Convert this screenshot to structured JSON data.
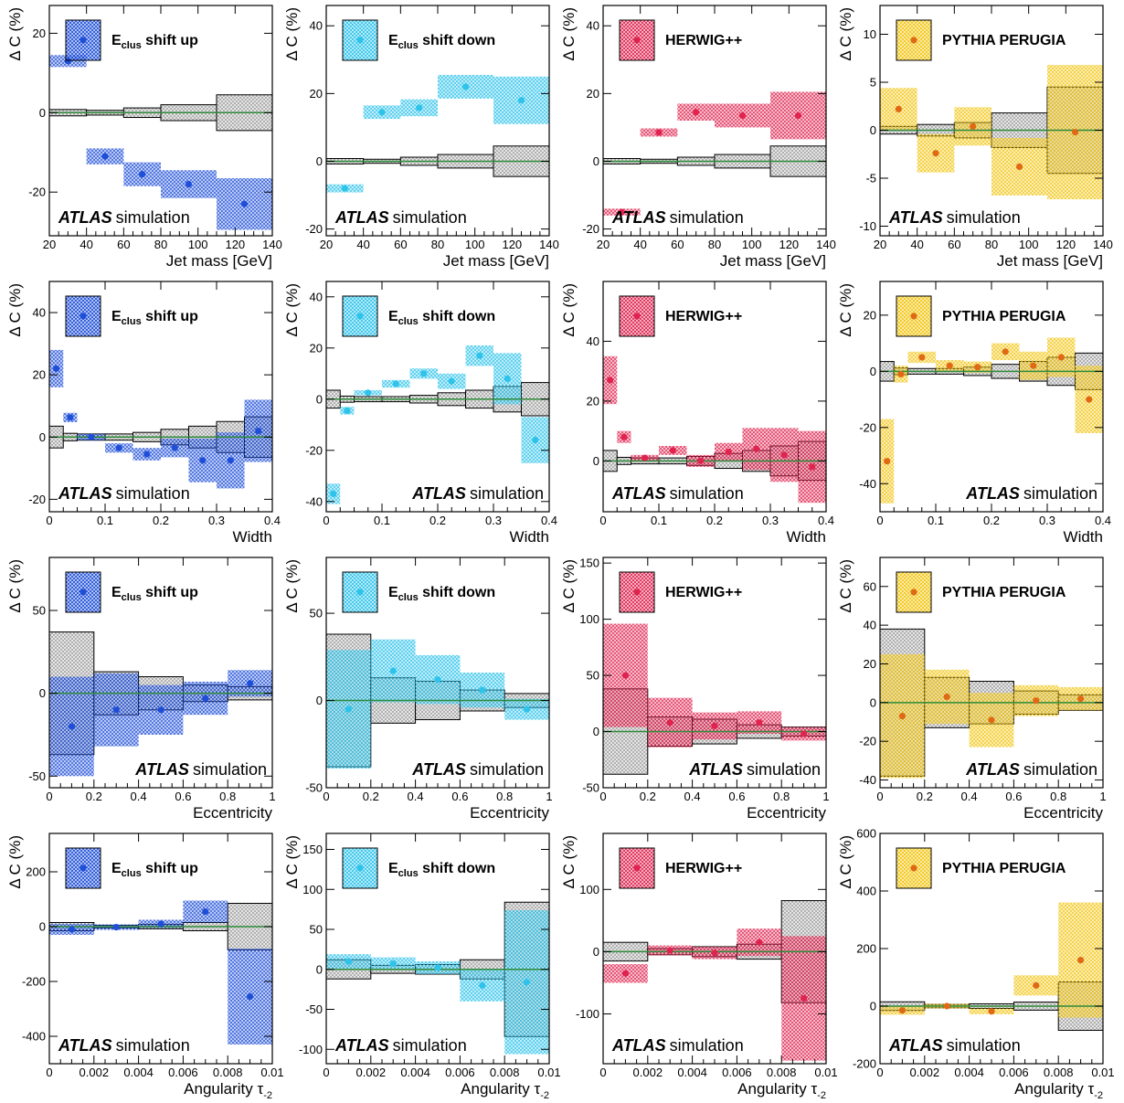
{
  "colors": {
    "shift_up": "#1f4fd8",
    "shift_down": "#2ec3ea",
    "herwig": "#e0234f",
    "perugia": "#f1c40f",
    "perugia_marker": "#e06a14",
    "nominal": "#2e8b3a",
    "syst_gray": "#b0b0b0"
  },
  "chart_data": [
    {
      "type": "scatter",
      "panel": "mass-up",
      "variant": "up",
      "legend": "E",
      "legend_sub": "clus",
      "legend_rest": " shift up",
      "xlabel": "Jet mass [GeV]",
      "ylabel": "Δ C (%)",
      "xlim": [
        20,
        140
      ],
      "ylim": [
        -31,
        27
      ],
      "xticks": [
        20,
        40,
        60,
        80,
        100,
        120,
        140
      ],
      "yticks": [
        -20,
        0,
        20
      ],
      "edges": [
        20,
        40,
        60,
        80,
        110,
        140
      ],
      "gray": [
        0.8,
        0.6,
        1.2,
        2.0,
        4.5
      ],
      "values": [
        13,
        -11,
        -15.5,
        -18,
        -23
      ],
      "errors": [
        1.5,
        2,
        3,
        3.5,
        6.5
      ],
      "legend_pos": "top-left",
      "atlas_pos": "bottom-left",
      "atlas": "ATLAS",
      "sim": "simulation"
    },
    {
      "type": "scatter",
      "panel": "mass-down",
      "variant": "down",
      "legend": "E",
      "legend_sub": "clus",
      "legend_rest": " shift down",
      "xlabel": "Jet mass [GeV]",
      "ylabel": "Δ C (%)",
      "xlim": [
        20,
        140
      ],
      "ylim": [
        -22,
        46
      ],
      "xticks": [
        20,
        40,
        60,
        80,
        100,
        120,
        140
      ],
      "yticks": [
        -20,
        0,
        20,
        40
      ],
      "edges": [
        20,
        40,
        60,
        80,
        110,
        140
      ],
      "gray": [
        0.8,
        0.6,
        1.2,
        2.0,
        4.5
      ],
      "values": [
        -8,
        14.5,
        15.8,
        22,
        18
      ],
      "errors": [
        1.2,
        2,
        2.5,
        3.5,
        7
      ],
      "legend_pos": "top-left",
      "atlas_pos": "bottom-left",
      "atlas": "ATLAS",
      "sim": "simulation"
    },
    {
      "type": "scatter",
      "panel": "mass-herwig",
      "variant": "herwig",
      "legend": "HERWIG++",
      "legend_sub": "",
      "legend_rest": "",
      "xlabel": "Jet mass [GeV]",
      "ylabel": "Δ C (%)",
      "xlim": [
        20,
        140
      ],
      "ylim": [
        -22,
        46
      ],
      "xticks": [
        20,
        40,
        60,
        80,
        100,
        120,
        140
      ],
      "yticks": [
        -20,
        0,
        20,
        40
      ],
      "edges": [
        20,
        40,
        60,
        80,
        110,
        140
      ],
      "gray": [
        0.8,
        0.6,
        1.2,
        2.0,
        4.5
      ],
      "values": [
        -15,
        8.5,
        14.5,
        13.5,
        13.5
      ],
      "errors": [
        1,
        1.2,
        2.5,
        3.5,
        7
      ],
      "legend_pos": "top-left",
      "atlas_pos": "bottom-left",
      "atlas": "ATLAS",
      "sim": "simulation"
    },
    {
      "type": "scatter",
      "panel": "mass-perugia",
      "variant": "perugia",
      "legend": "PYTHIA PERUGIA",
      "legend_sub": "",
      "legend_rest": "",
      "xlabel": "Jet mass [GeV]",
      "ylabel": "Δ C (%)",
      "xlim": [
        20,
        140
      ],
      "ylim": [
        -11,
        13
      ],
      "xticks": [
        20,
        40,
        60,
        80,
        100,
        120,
        140
      ],
      "yticks": [
        -10,
        -5,
        0,
        5,
        10
      ],
      "edges": [
        20,
        40,
        60,
        80,
        110,
        140
      ],
      "gray": [
        0.4,
        0.6,
        0.8,
        1.8,
        4.5
      ],
      "values": [
        2.2,
        -2.4,
        0.4,
        -3.8,
        -0.2
      ],
      "errors": [
        2.2,
        2,
        2,
        3,
        7
      ],
      "legend_pos": "top-left",
      "atlas_pos": "bottom-left",
      "atlas": "ATLAS",
      "sim": "simulation"
    },
    {
      "type": "scatter",
      "panel": "width-up",
      "variant": "up",
      "legend": "E",
      "legend_sub": "clus",
      "legend_rest": " shift up",
      "xlabel": "Width",
      "ylabel": "Δ C (%)",
      "xlim": [
        0,
        0.4
      ],
      "ylim": [
        -24,
        50
      ],
      "xticks": [
        0,
        0.1,
        0.2,
        0.3,
        0.4
      ],
      "yticks": [
        -20,
        0,
        20,
        40
      ],
      "edges": [
        0,
        0.025,
        0.05,
        0.1,
        0.15,
        0.2,
        0.25,
        0.3,
        0.35,
        0.4
      ],
      "gray": [
        3.5,
        1.2,
        1,
        1,
        1.5,
        2.5,
        3.5,
        5,
        6.5
      ],
      "values": [
        22,
        6.3,
        0,
        -3.5,
        -5.5,
        -3.5,
        -7.5,
        -7.5,
        2
      ],
      "errors": [
        6,
        1.5,
        1,
        1.5,
        2,
        3,
        7,
        9,
        10
      ],
      "legend_pos": "top-left",
      "atlas_pos": "bottom-left",
      "atlas": "ATLAS",
      "sim": "simulation"
    },
    {
      "type": "scatter",
      "panel": "width-down",
      "variant": "down",
      "legend": "E",
      "legend_sub": "clus",
      "legend_rest": " shift down",
      "xlabel": "Width",
      "ylabel": "Δ C (%)",
      "xlim": [
        0,
        0.4
      ],
      "ylim": [
        -44,
        46
      ],
      "xticks": [
        0,
        0.1,
        0.2,
        0.3,
        0.4
      ],
      "yticks": [
        -40,
        -20,
        0,
        20,
        40
      ],
      "edges": [
        0,
        0.025,
        0.05,
        0.1,
        0.15,
        0.2,
        0.25,
        0.3,
        0.35,
        0.4
      ],
      "gray": [
        3.5,
        1.2,
        1,
        1,
        1.5,
        2.5,
        3.5,
        5,
        6.5
      ],
      "values": [
        -37,
        -4.5,
        2.5,
        6,
        10,
        7,
        17,
        8,
        -16
      ],
      "errors": [
        4,
        1.5,
        1,
        1.5,
        2,
        3,
        4,
        10,
        9
      ],
      "legend_pos": "top-left",
      "atlas_pos": "bottom-right",
      "atlas": "ATLAS",
      "sim": "simulation"
    },
    {
      "type": "scatter",
      "panel": "width-herwig",
      "variant": "herwig",
      "legend": "HERWIG++",
      "legend_sub": "",
      "legend_rest": "",
      "xlabel": "Width",
      "ylabel": "Δ C (%)",
      "xlim": [
        0,
        0.4
      ],
      "ylim": [
        -17,
        60
      ],
      "xticks": [
        0,
        0.1,
        0.2,
        0.3,
        0.4
      ],
      "yticks": [
        0,
        20,
        40
      ],
      "edges": [
        0,
        0.025,
        0.05,
        0.1,
        0.15,
        0.2,
        0.25,
        0.3,
        0.35,
        0.4
      ],
      "gray": [
        3.5,
        1.2,
        1,
        1,
        1.5,
        2.5,
        3.5,
        5,
        6.5
      ],
      "values": [
        27,
        8,
        1,
        3.5,
        0,
        3,
        4,
        2,
        -2
      ],
      "errors": [
        8,
        2,
        1,
        1.5,
        2,
        3,
        7,
        9,
        12
      ],
      "legend_pos": "top-left",
      "atlas_pos": "bottom-left",
      "atlas": "ATLAS",
      "sim": "simulation"
    },
    {
      "type": "scatter",
      "panel": "width-perugia",
      "variant": "perugia",
      "legend": "PYTHIA PERUGIA",
      "legend_sub": "",
      "legend_rest": "",
      "xlabel": "Width",
      "ylabel": "Δ C (%)",
      "xlim": [
        0,
        0.4
      ],
      "ylim": [
        -50,
        32
      ],
      "xticks": [
        0,
        0.1,
        0.2,
        0.3,
        0.4
      ],
      "yticks": [
        -40,
        -20,
        0,
        20
      ],
      "edges": [
        0,
        0.025,
        0.05,
        0.1,
        0.15,
        0.2,
        0.25,
        0.3,
        0.35,
        0.4
      ],
      "gray": [
        3.5,
        1.2,
        1,
        1,
        1.5,
        2.5,
        3.5,
        5,
        6.5
      ],
      "values": [
        -32,
        -1,
        5,
        2,
        1.5,
        7,
        2,
        5,
        -10
      ],
      "errors": [
        15,
        3,
        2,
        2,
        2,
        3,
        5,
        7,
        12
      ],
      "legend_pos": "top-left",
      "atlas_pos": "bottom-right",
      "atlas": "ATLAS",
      "sim": "simulation"
    },
    {
      "type": "scatter",
      "panel": "ecc-up",
      "variant": "up",
      "legend": "E",
      "legend_sub": "clus",
      "legend_rest": " shift up",
      "xlabel": "Eccentricity",
      "ylabel": "Δ C (%)",
      "xlim": [
        0,
        1
      ],
      "ylim": [
        -57,
        82
      ],
      "xticks": [
        0,
        0.2,
        0.4,
        0.6,
        0.8,
        1
      ],
      "yticks": [
        -50,
        0,
        50
      ],
      "edges": [
        0,
        0.2,
        0.4,
        0.6,
        0.8,
        1
      ],
      "gray": [
        37,
        13,
        10,
        5,
        4
      ],
      "values": [
        -20,
        -10,
        -10,
        -3,
        6
      ],
      "errors": [
        30,
        22,
        15,
        10,
        8
      ],
      "legend_pos": "top-left",
      "atlas_pos": "bottom-right",
      "atlas": "ATLAS",
      "sim": "simulation"
    },
    {
      "type": "scatter",
      "panel": "ecc-down",
      "variant": "down",
      "legend": "E",
      "legend_sub": "clus",
      "legend_rest": " shift down",
      "xlabel": "Eccentricity",
      "ylabel": "Δ C (%)",
      "xlim": [
        0,
        1
      ],
      "ylim": [
        -50,
        82
      ],
      "xticks": [
        0,
        0.2,
        0.4,
        0.6,
        0.8,
        1
      ],
      "yticks": [
        -50,
        0,
        50
      ],
      "edges": [
        0,
        0.2,
        0.4,
        0.6,
        0.8,
        1
      ],
      "gray": [
        38,
        13,
        11,
        6,
        4
      ],
      "values": [
        -5,
        17,
        12,
        6,
        -5
      ],
      "errors": [
        34,
        18,
        14,
        10,
        6
      ],
      "legend_pos": "top-left",
      "atlas_pos": "bottom-right",
      "atlas": "ATLAS",
      "sim": "simulation"
    },
    {
      "type": "scatter",
      "panel": "ecc-herwig",
      "variant": "herwig",
      "legend": "HERWIG++",
      "legend_sub": "",
      "legend_rest": "",
      "xlabel": "Eccentricity",
      "ylabel": "Δ C (%)",
      "xlim": [
        0,
        1
      ],
      "ylim": [
        -50,
        155
      ],
      "xticks": [
        0,
        0.2,
        0.4,
        0.6,
        0.8,
        1
      ],
      "yticks": [
        -50,
        0,
        50,
        100,
        150
      ],
      "edges": [
        0,
        0.2,
        0.4,
        0.6,
        0.8,
        1
      ],
      "gray": [
        38,
        13,
        11,
        6,
        4
      ],
      "values": [
        50,
        8,
        5,
        8,
        -2
      ],
      "errors": [
        46,
        22,
        12,
        10,
        6
      ],
      "legend_pos": "top-left",
      "atlas_pos": "bottom-right",
      "atlas": "ATLAS",
      "sim": "simulation"
    },
    {
      "type": "scatter",
      "panel": "ecc-perugia",
      "variant": "perugia",
      "legend": "PYTHIA PERUGIA",
      "legend_sub": "",
      "legend_rest": "",
      "xlabel": "Eccentricity",
      "ylabel": "Δ C (%)",
      "xlim": [
        0,
        1
      ],
      "ylim": [
        -44,
        75
      ],
      "xticks": [
        0,
        0.2,
        0.4,
        0.6,
        0.8,
        1
      ],
      "yticks": [
        -40,
        -20,
        0,
        20,
        40,
        60
      ],
      "edges": [
        0,
        0.2,
        0.4,
        0.6,
        0.8,
        1
      ],
      "gray": [
        38,
        13,
        11,
        6,
        4
      ],
      "values": [
        -7,
        3,
        -9,
        1,
        2
      ],
      "errors": [
        32,
        14,
        14,
        8,
        6
      ],
      "legend_pos": "top-left",
      "atlas_pos": "bottom-right",
      "atlas": "ATLAS",
      "sim": "simulation"
    },
    {
      "type": "scatter",
      "panel": "ang-up",
      "variant": "up",
      "legend": "E",
      "legend_sub": "clus",
      "legend_rest": " shift up",
      "xlabel": "Angularity τ",
      "xlabel_sub": "-2",
      "ylabel": "Δ C (%)",
      "xlim": [
        0,
        0.01
      ],
      "ylim": [
        -500,
        340
      ],
      "xticks": [
        0,
        0.002,
        0.004,
        0.006,
        0.008,
        0.01
      ],
      "yticks": [
        -400,
        -200,
        0,
        200
      ],
      "edges": [
        0,
        0.002,
        0.004,
        0.006,
        0.008,
        0.01
      ],
      "gray": [
        15,
        5,
        8,
        15,
        85
      ],
      "values": [
        -10,
        -2,
        10,
        55,
        -255
      ],
      "errors": [
        20,
        10,
        15,
        40,
        175
      ],
      "legend_pos": "top-left",
      "atlas_pos": "bottom-left",
      "atlas": "ATLAS",
      "sim": "simulation"
    },
    {
      "type": "scatter",
      "panel": "ang-down",
      "variant": "down",
      "legend": "E",
      "legend_sub": "clus",
      "legend_rest": " shift down",
      "xlabel": "Angularity τ",
      "xlabel_sub": "-2",
      "ylabel": "Δ C (%)",
      "xlim": [
        0,
        0.01
      ],
      "ylim": [
        -118,
        170
      ],
      "xticks": [
        0,
        0.002,
        0.004,
        0.006,
        0.008,
        0.01
      ],
      "yticks": [
        -100,
        -50,
        0,
        50,
        100,
        150
      ],
      "edges": [
        0,
        0.002,
        0.004,
        0.006,
        0.008,
        0.01
      ],
      "gray": [
        12,
        5,
        6,
        12,
        84
      ],
      "values": [
        10,
        7,
        2,
        -20,
        -16
      ],
      "errors": [
        9,
        8,
        8,
        20,
        90
      ],
      "legend_pos": "top-left",
      "atlas_pos": "bottom-left",
      "atlas": "ATLAS",
      "sim": "simulation"
    },
    {
      "type": "scatter",
      "panel": "ang-herwig",
      "variant": "herwig",
      "legend": "HERWIG++",
      "legend_sub": "",
      "legend_rest": "",
      "xlabel": "Angularity τ",
      "xlabel_sub": "-2",
      "ylabel": "Δ C (%)",
      "xlim": [
        0,
        0.01
      ],
      "ylim": [
        -180,
        190
      ],
      "xticks": [
        0,
        0.002,
        0.004,
        0.006,
        0.008,
        0.01
      ],
      "yticks": [
        -100,
        0,
        100
      ],
      "edges": [
        0,
        0.002,
        0.004,
        0.006,
        0.008,
        0.01
      ],
      "gray": [
        15,
        5,
        8,
        12,
        82
      ],
      "values": [
        -35,
        2,
        -2,
        15,
        -75
      ],
      "errors": [
        15,
        8,
        10,
        22,
        100
      ],
      "legend_pos": "top-left",
      "atlas_pos": "bottom-left",
      "atlas": "ATLAS",
      "sim": "simulation"
    },
    {
      "type": "scatter",
      "panel": "ang-perugia",
      "variant": "perugia",
      "legend": "PYTHIA PERUGIA",
      "legend_sub": "",
      "legend_rest": "",
      "xlabel": "Angularity τ",
      "xlabel_sub": "-2",
      "ylabel": "Δ C (%)",
      "xlim": [
        0,
        0.01
      ],
      "ylim": [
        -200,
        600
      ],
      "xticks": [
        0,
        0.002,
        0.004,
        0.006,
        0.008,
        0.01
      ],
      "yticks": [
        -200,
        0,
        200,
        400,
        600
      ],
      "edges": [
        0,
        0.002,
        0.004,
        0.006,
        0.008,
        0.01
      ],
      "gray": [
        15,
        6,
        8,
        14,
        84
      ],
      "values": [
        -15,
        0,
        -18,
        72,
        160
      ],
      "errors": [
        15,
        8,
        10,
        35,
        200
      ],
      "legend_pos": "top-left",
      "atlas_pos": "bottom-left",
      "atlas": "ATLAS",
      "sim": "simulation"
    }
  ]
}
